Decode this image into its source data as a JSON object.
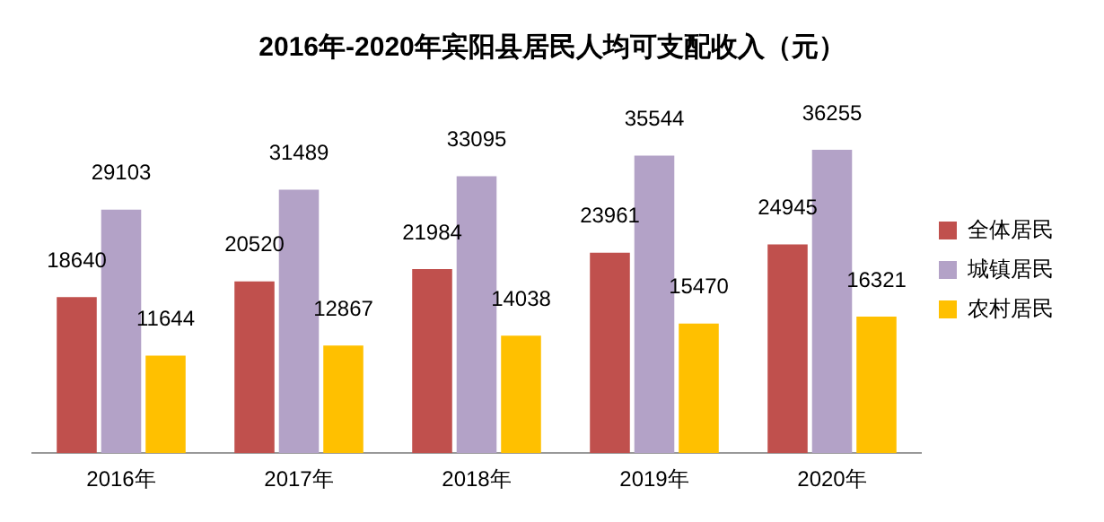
{
  "chart_data": {
    "type": "bar",
    "title": "2016年-2020年宾阳县居民人均可支配收入（元）",
    "categories": [
      "2016年",
      "2017年",
      "2018年",
      "2019年",
      "2020年"
    ],
    "series": [
      {
        "name": "全体居民",
        "color": "#c0504d",
        "values": [
          18640,
          20520,
          21984,
          23961,
          24945
        ]
      },
      {
        "name": "城镇居民",
        "color": "#b3a2c7",
        "values": [
          29103,
          31489,
          33095,
          35544,
          36255
        ]
      },
      {
        "name": "农村居民",
        "color": "#ffc000",
        "values": [
          11644,
          12867,
          14038,
          15470,
          16321
        ]
      }
    ],
    "data_labels": true,
    "legend": "right",
    "grid": false
  }
}
